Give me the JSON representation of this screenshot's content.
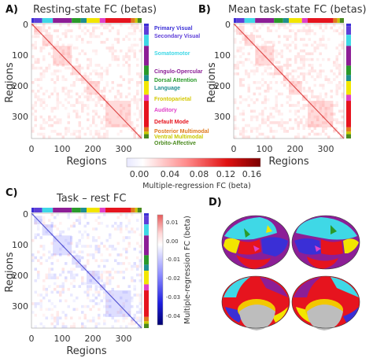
{
  "panels": {
    "a": {
      "letter": "A)",
      "title": "Resting-state FC (betas)",
      "xlabel": "Regions",
      "ylabel": "Regions"
    },
    "b": {
      "letter": "B)",
      "title": "Mean task-state FC (betas)",
      "xlabel": "Regions",
      "ylabel": "Regions"
    },
    "c": {
      "letter": "C)",
      "title": "Task – rest FC",
      "xlabel": "Regions",
      "ylabel": "Regions"
    },
    "d": {
      "letter": "D)"
    }
  },
  "ticks": {
    "x": [
      "0",
      "100",
      "200",
      "300"
    ],
    "y": [
      "0",
      "100",
      "200",
      "300"
    ]
  },
  "networks": [
    {
      "name": "Primary Visual",
      "color": "#3a2fd6"
    },
    {
      "name": "Secondary Visual",
      "color": "#5e3fd8"
    },
    {
      "name": "Somatomotor",
      "color": "#3fd8e6"
    },
    {
      "name": "Cingulo-Opercular",
      "color": "#8c1e96"
    },
    {
      "name": "Dorsal Attention",
      "color": "#2a9a2a"
    },
    {
      "name": "Language",
      "color": "#1f8f8f"
    },
    {
      "name": "Frontoparietal",
      "color": "#f2e600"
    },
    {
      "name": "Auditory",
      "color": "#e040c8"
    },
    {
      "name": "Default Mode",
      "color": "#e6141e"
    },
    {
      "name": "Posterior Multimodal",
      "color": "#e07a1e"
    },
    {
      "name": "Ventral Multimodal",
      "color": "#c8c800"
    },
    {
      "name": "Orbito-Affective",
      "color": "#4a8a1e"
    }
  ],
  "colorbar_ab": {
    "label": "Multiple-regression FC (beta)",
    "ticks": [
      "0.00",
      "0.04",
      "0.08",
      "0.12",
      "0.16"
    ]
  },
  "colorbar_c": {
    "label": "Multiple-regression FC (beta)",
    "ticks": [
      "0.01",
      "0.00",
      "-0.01",
      "-0.02",
      "-0.03",
      "-0.04"
    ]
  }
}
